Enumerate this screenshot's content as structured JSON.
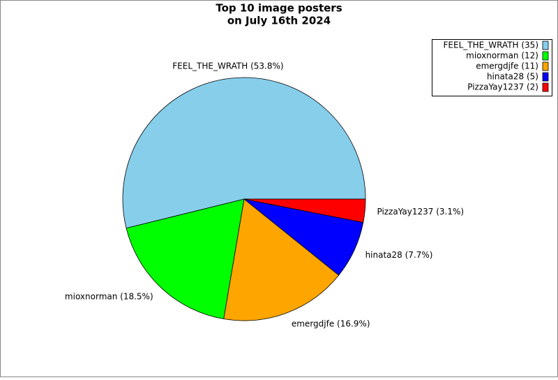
{
  "chart_data": {
    "type": "pie",
    "title": [
      "Top 10 image posters",
      "on July 16th 2024"
    ],
    "categories": [
      "FEEL_THE_WRATH",
      "mioxnorman",
      "emergdjfe",
      "hinata28",
      "PizzaYay1237"
    ],
    "values": [
      35,
      12,
      11,
      5,
      2
    ],
    "value_labels": [
      "FEEL_THE_WRATH (35)",
      "mioxnorman (12)",
      "emergdjfe (11)",
      "hinata28 (5)",
      "PizzaYay1237 (2)"
    ],
    "slice_labels": [
      "FEEL_THE_WRATH (53.8%)",
      "mioxnorman (18.5%)",
      "emergdjfe (16.9%)",
      "hinata28 (7.7%)",
      "PizzaYay1237 (3.1%)"
    ],
    "colors": [
      "#87ceeb",
      "#00ff00",
      "#ffa500",
      "#0000ff",
      "#ff0000"
    ],
    "legend": "upper right"
  }
}
